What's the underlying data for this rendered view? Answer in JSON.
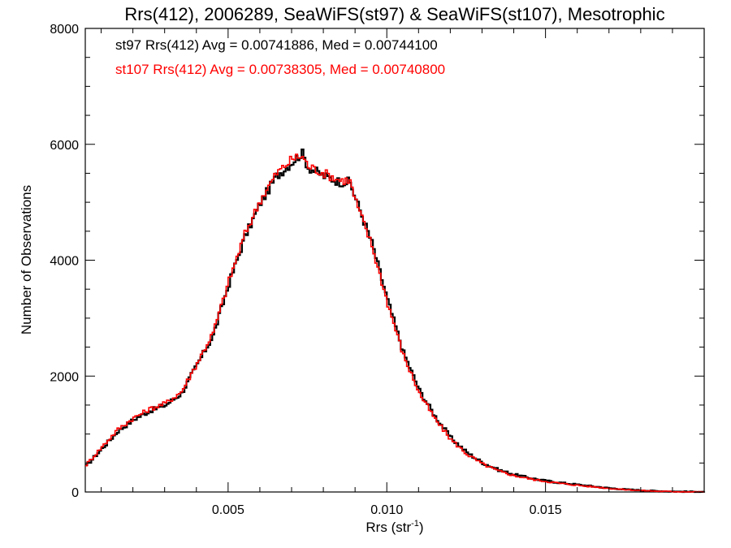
{
  "colors": {
    "series1": "#000000",
    "series2": "#ff0000",
    "axis": "#000000"
  },
  "chart_data": {
    "type": "line",
    "style": "step-histogram",
    "title": "Rrs(412), 2006289, SeaWiFS(st97) & SeaWiFS(st107), Mesotrophic",
    "xlabel": "Rrs (str",
    "xlabel_sup": "-1",
    "xlabel_end": ")",
    "ylabel": "Number of Observations",
    "xlim": [
      0.0005,
      0.02
    ],
    "ylim": [
      0,
      8000
    ],
    "x_ticks": [
      0.005,
      0.01,
      0.015
    ],
    "x_tick_labels": [
      "0.005",
      "0.010",
      "0.015"
    ],
    "y_ticks": [
      0,
      2000,
      4000,
      6000,
      8000
    ],
    "y_tick_labels": [
      "0",
      "2000",
      "4000",
      "6000",
      "8000"
    ],
    "grid": false,
    "legend_position": "top-left",
    "annotations": [
      "st97 Rrs(412) Avg = 0.00741886, Med = 0.00744100",
      "st107 Rrs(412) Avg = 0.00738305, Med = 0.00740800"
    ],
    "series": [
      {
        "color": "#000000",
        "x": [
          0.0005,
          0.001,
          0.0015,
          0.002,
          0.0025,
          0.003,
          0.0035,
          0.004,
          0.0045,
          0.005,
          0.0055,
          0.006,
          0.0065,
          0.007,
          0.0073,
          0.0075,
          0.008,
          0.0085,
          0.0088,
          0.009,
          0.0095,
          0.01,
          0.0105,
          0.011,
          0.0115,
          0.012,
          0.0125,
          0.013,
          0.0135,
          0.014,
          0.0145,
          0.015,
          0.0155,
          0.016,
          0.0165,
          0.017,
          0.0175,
          0.018,
          0.0185,
          0.019,
          0.0195,
          0.02
        ],
        "values": [
          450,
          750,
          1050,
          1250,
          1400,
          1500,
          1700,
          2200,
          2700,
          3600,
          4400,
          5000,
          5450,
          5700,
          5850,
          5600,
          5450,
          5350,
          5350,
          5050,
          4300,
          3300,
          2400,
          1750,
          1300,
          930,
          680,
          500,
          380,
          300,
          240,
          190,
          155,
          125,
          95,
          65,
          45,
          28,
          15,
          8,
          4,
          2
        ]
      },
      {
        "color": "#ff0000",
        "x": [
          0.0005,
          0.001,
          0.0015,
          0.002,
          0.0025,
          0.003,
          0.0035,
          0.004,
          0.0045,
          0.005,
          0.0055,
          0.006,
          0.0065,
          0.007,
          0.0073,
          0.0075,
          0.008,
          0.0085,
          0.0088,
          0.009,
          0.0095,
          0.01,
          0.0105,
          0.011,
          0.0115,
          0.012,
          0.0125,
          0.013,
          0.0135,
          0.014,
          0.0145,
          0.015,
          0.0155,
          0.016,
          0.0165,
          0.017,
          0.0175,
          0.018,
          0.0185,
          0.019,
          0.0195,
          0.02
        ],
        "values": [
          470,
          780,
          1080,
          1280,
          1430,
          1530,
          1730,
          2230,
          2750,
          3650,
          4450,
          5050,
          5500,
          5750,
          5800,
          5620,
          5500,
          5380,
          5380,
          5000,
          4250,
          3250,
          2350,
          1700,
          1250,
          900,
          650,
          480,
          360,
          280,
          225,
          180,
          145,
          115,
          88,
          60,
          40,
          25,
          13,
          7,
          3,
          1
        ]
      }
    ]
  }
}
